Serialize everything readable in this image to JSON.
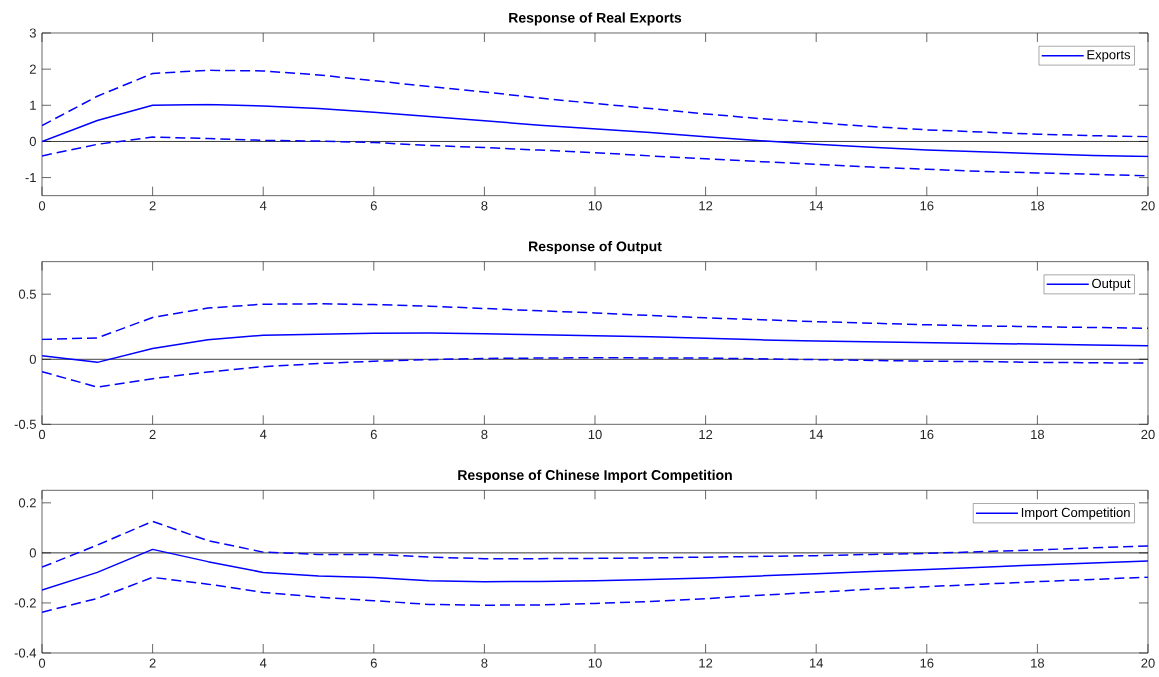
{
  "chart_data": [
    {
      "type": "line",
      "title": "Response of Real Exports",
      "x": [
        0,
        1,
        2,
        3,
        4,
        5,
        6,
        7,
        8,
        9,
        10,
        11,
        12,
        13,
        14,
        15,
        16,
        17,
        18,
        19,
        20
      ],
      "xlim": [
        0,
        20
      ],
      "xticks": [
        0,
        2,
        4,
        6,
        8,
        10,
        12,
        14,
        16,
        18,
        20
      ],
      "ylim": [
        -1.5,
        3
      ],
      "yticks": [
        -1,
        0,
        1,
        2,
        3
      ],
      "legend": "top right",
      "ref_lines": [
        {
          "axis": "y",
          "value": 0,
          "color": "#000000"
        }
      ],
      "series": [
        {
          "name": "Exports",
          "color": "#0000ff",
          "line_style": "solid",
          "values": [
            0,
            0.58,
            1.0,
            1.02,
            0.98,
            0.91,
            0.81,
            0.69,
            0.57,
            0.45,
            0.35,
            0.25,
            0.13,
            0.02,
            -0.08,
            -0.16,
            -0.24,
            -0.29,
            -0.34,
            -0.39,
            -0.42
          ]
        },
        {
          "color": "#0000ff",
          "line_style": "dashed",
          "values": [
            0.44,
            1.25,
            1.88,
            1.97,
            1.95,
            1.84,
            1.68,
            1.52,
            1.37,
            1.2,
            1.05,
            0.91,
            0.76,
            0.63,
            0.52,
            0.41,
            0.32,
            0.26,
            0.2,
            0.16,
            0.13
          ]
        },
        {
          "color": "#0000ff",
          "line_style": "dashed",
          "values": [
            -0.4,
            -0.08,
            0.12,
            0.08,
            0.03,
            0.01,
            -0.03,
            -0.11,
            -0.17,
            -0.24,
            -0.31,
            -0.4,
            -0.48,
            -0.56,
            -0.63,
            -0.71,
            -0.77,
            -0.83,
            -0.87,
            -0.91,
            -0.95
          ]
        }
      ]
    },
    {
      "type": "line",
      "title": "Response of Output",
      "x": [
        0,
        1,
        2,
        3,
        4,
        5,
        6,
        7,
        8,
        9,
        10,
        11,
        12,
        13,
        14,
        15,
        16,
        17,
        18,
        19,
        20
      ],
      "xlim": [
        0,
        20
      ],
      "xticks": [
        0,
        2,
        4,
        6,
        8,
        10,
        12,
        14,
        16,
        18,
        20
      ],
      "ylim": [
        -0.5,
        0.75
      ],
      "yticks": [
        -0.5,
        0,
        0.5
      ],
      "legend": "top right",
      "ref_lines": [
        {
          "axis": "y",
          "value": 0,
          "color": "#000000"
        }
      ],
      "series": [
        {
          "name": "Output",
          "color": "#0000ff",
          "line_style": "solid",
          "values": [
            0.027,
            -0.024,
            0.083,
            0.149,
            0.185,
            0.193,
            0.2,
            0.202,
            0.196,
            0.188,
            0.18,
            0.173,
            0.161,
            0.149,
            0.14,
            0.134,
            0.128,
            0.122,
            0.116,
            0.11,
            0.104
          ]
        },
        {
          "color": "#0000ff",
          "line_style": "dashed",
          "values": [
            0.152,
            0.164,
            0.321,
            0.393,
            0.423,
            0.426,
            0.42,
            0.408,
            0.39,
            0.372,
            0.356,
            0.336,
            0.318,
            0.304,
            0.289,
            0.277,
            0.265,
            0.256,
            0.25,
            0.244,
            0.238
          ]
        },
        {
          "color": "#0000ff",
          "line_style": "dashed",
          "values": [
            -0.095,
            -0.214,
            -0.149,
            -0.098,
            -0.057,
            -0.033,
            -0.015,
            -0.003,
            0.006,
            0.009,
            0.012,
            0.01,
            0.009,
            0.003,
            -0.003,
            -0.009,
            -0.015,
            -0.018,
            -0.024,
            -0.027,
            -0.03
          ]
        }
      ]
    },
    {
      "type": "line",
      "title": "Response of Chinese Import Competition",
      "x": [
        0,
        1,
        2,
        3,
        4,
        5,
        6,
        7,
        8,
        9,
        10,
        11,
        12,
        13,
        14,
        15,
        16,
        17,
        18,
        19,
        20
      ],
      "xlim": [
        0,
        20
      ],
      "xticks": [
        0,
        2,
        4,
        6,
        8,
        10,
        12,
        14,
        16,
        18,
        20
      ],
      "ylim": [
        -0.4,
        0.25
      ],
      "yticks": [
        -0.4,
        -0.2,
        0,
        0.2
      ],
      "legend": "top right",
      "ref_lines": [
        {
          "axis": "y",
          "value": 0,
          "color": "#000000"
        }
      ],
      "series": [
        {
          "name": "Import Competition",
          "color": "#0000ff",
          "line_style": "solid",
          "values": [
            -0.148,
            -0.078,
            0.014,
            -0.035,
            -0.078,
            -0.092,
            -0.098,
            -0.111,
            -0.115,
            -0.114,
            -0.111,
            -0.106,
            -0.1,
            -0.092,
            -0.083,
            -0.074,
            -0.066,
            -0.057,
            -0.048,
            -0.04,
            -0.032
          ]
        },
        {
          "color": "#0000ff",
          "line_style": "dashed",
          "values": [
            -0.057,
            0.031,
            0.126,
            0.049,
            0.003,
            -0.006,
            -0.006,
            -0.017,
            -0.023,
            -0.023,
            -0.022,
            -0.02,
            -0.017,
            -0.014,
            -0.011,
            -0.006,
            -0.002,
            0.005,
            0.012,
            0.02,
            0.028
          ]
        },
        {
          "color": "#0000ff",
          "line_style": "dashed",
          "values": [
            -0.237,
            -0.182,
            -0.098,
            -0.125,
            -0.158,
            -0.177,
            -0.191,
            -0.206,
            -0.209,
            -0.208,
            -0.202,
            -0.194,
            -0.183,
            -0.169,
            -0.157,
            -0.145,
            -0.135,
            -0.125,
            -0.115,
            -0.106,
            -0.097
          ]
        }
      ]
    }
  ]
}
